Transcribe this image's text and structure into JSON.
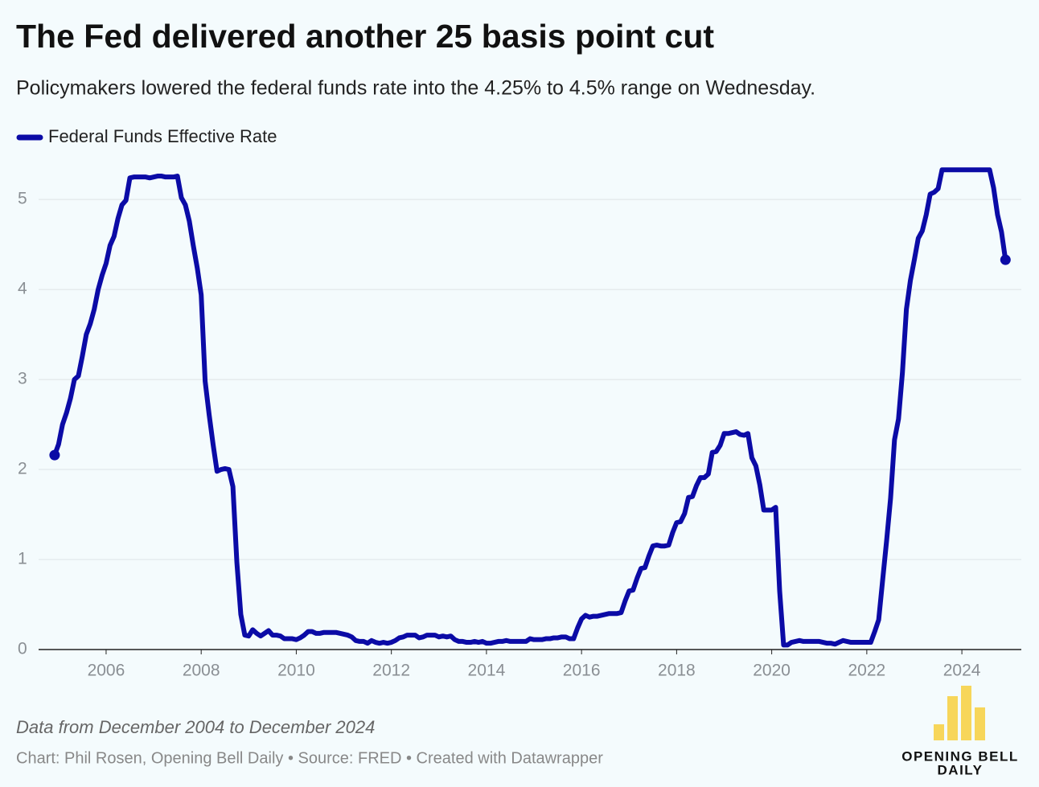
{
  "chart_data": {
    "type": "line",
    "title": "The Fed delivered another 25 basis point cut",
    "subtitle": "Policymakers lowered the federal funds rate into the 4.25% to 4.5% range on Wednesday.",
    "note": "Data from December 2004 to December 2024",
    "source": "Chart: Phil Rosen, Opening Bell Daily • Source: FRED • Created with Datawrapper",
    "logo": [
      "OPENING BELL",
      "DAILY"
    ],
    "xlim": [
      2004.58,
      2025.25
    ],
    "xticks": [
      2006,
      2008,
      2010,
      2012,
      2014,
      2016,
      2018,
      2020,
      2022,
      2024
    ],
    "ylim": [
      0,
      5.43
    ],
    "yticks": [
      0,
      1,
      2,
      3,
      4,
      5
    ],
    "grid": true,
    "x": [
      2004.917,
      2005,
      2005.083,
      2005.167,
      2005.25,
      2005.333,
      2005.417,
      2005.5,
      2005.583,
      2005.667,
      2005.75,
      2005.833,
      2005.917,
      2006,
      2006.083,
      2006.167,
      2006.25,
      2006.333,
      2006.417,
      2006.5,
      2006.583,
      2006.667,
      2006.75,
      2006.833,
      2006.917,
      2007,
      2007.083,
      2007.167,
      2007.25,
      2007.333,
      2007.417,
      2007.5,
      2007.583,
      2007.667,
      2007.75,
      2007.833,
      2007.917,
      2008,
      2008.083,
      2008.167,
      2008.25,
      2008.333,
      2008.417,
      2008.5,
      2008.583,
      2008.667,
      2008.75,
      2008.833,
      2008.917,
      2009,
      2009.083,
      2009.167,
      2009.25,
      2009.333,
      2009.417,
      2009.5,
      2009.583,
      2009.667,
      2009.75,
      2009.833,
      2009.917,
      2010,
      2010.083,
      2010.167,
      2010.25,
      2010.333,
      2010.417,
      2010.5,
      2010.583,
      2010.667,
      2010.75,
      2010.833,
      2010.917,
      2011,
      2011.083,
      2011.167,
      2011.25,
      2011.333,
      2011.417,
      2011.5,
      2011.583,
      2011.667,
      2011.75,
      2011.833,
      2011.917,
      2012,
      2012.083,
      2012.167,
      2012.25,
      2012.333,
      2012.417,
      2012.5,
      2012.583,
      2012.667,
      2012.75,
      2012.833,
      2012.917,
      2013,
      2013.083,
      2013.167,
      2013.25,
      2013.333,
      2013.417,
      2013.5,
      2013.583,
      2013.667,
      2013.75,
      2013.833,
      2013.917,
      2014,
      2014.083,
      2014.167,
      2014.25,
      2014.333,
      2014.417,
      2014.5,
      2014.583,
      2014.667,
      2014.75,
      2014.833,
      2014.917,
      2015,
      2015.083,
      2015.167,
      2015.25,
      2015.333,
      2015.417,
      2015.5,
      2015.583,
      2015.667,
      2015.75,
      2015.833,
      2015.917,
      2016,
      2016.083,
      2016.167,
      2016.25,
      2016.333,
      2016.417,
      2016.5,
      2016.583,
      2016.667,
      2016.75,
      2016.833,
      2016.917,
      2017,
      2017.083,
      2017.167,
      2017.25,
      2017.333,
      2017.417,
      2017.5,
      2017.583,
      2017.667,
      2017.75,
      2017.833,
      2017.917,
      2018,
      2018.083,
      2018.167,
      2018.25,
      2018.333,
      2018.417,
      2018.5,
      2018.583,
      2018.667,
      2018.75,
      2018.833,
      2018.917,
      2019,
      2019.083,
      2019.167,
      2019.25,
      2019.333,
      2019.417,
      2019.5,
      2019.583,
      2019.667,
      2019.75,
      2019.833,
      2019.917,
      2020,
      2020.083,
      2020.167,
      2020.25,
      2020.333,
      2020.417,
      2020.5,
      2020.583,
      2020.667,
      2020.75,
      2020.833,
      2020.917,
      2021,
      2021.083,
      2021.167,
      2021.25,
      2021.333,
      2021.417,
      2021.5,
      2021.583,
      2021.667,
      2021.75,
      2021.833,
      2021.917,
      2022,
      2022.083,
      2022.167,
      2022.25,
      2022.333,
      2022.417,
      2022.5,
      2022.583,
      2022.667,
      2022.75,
      2022.833,
      2022.917,
      2023,
      2023.083,
      2023.167,
      2023.25,
      2023.333,
      2023.417,
      2023.5,
      2023.583,
      2023.667,
      2023.75,
      2023.833,
      2023.917,
      2024,
      2024.083,
      2024.167,
      2024.25,
      2024.333,
      2024.417,
      2024.5,
      2024.583,
      2024.667,
      2024.75,
      2024.833,
      2024.917
    ],
    "series": [
      {
        "name": "Federal Funds Effective Rate",
        "color": "#0b0ba6",
        "values": [
          2.16,
          2.28,
          2.5,
          2.63,
          2.79,
          3,
          3.04,
          3.26,
          3.5,
          3.62,
          3.78,
          4,
          4.16,
          4.29,
          4.49,
          4.59,
          4.79,
          4.94,
          4.99,
          5.24,
          5.25,
          5.25,
          5.25,
          5.25,
          5.24,
          5.25,
          5.26,
          5.26,
          5.25,
          5.25,
          5.25,
          5.26,
          5.02,
          4.94,
          4.76,
          4.49,
          4.24,
          3.94,
          2.98,
          2.61,
          2.28,
          1.98,
          2,
          2.01,
          2,
          1.81,
          0.97,
          0.39,
          0.16,
          0.15,
          0.22,
          0.18,
          0.15,
          0.18,
          0.21,
          0.16,
          0.16,
          0.15,
          0.12,
          0.12,
          0.12,
          0.11,
          0.13,
          0.16,
          0.2,
          0.2,
          0.18,
          0.18,
          0.19,
          0.19,
          0.19,
          0.19,
          0.18,
          0.17,
          0.16,
          0.14,
          0.1,
          0.09,
          0.09,
          0.07,
          0.1,
          0.08,
          0.07,
          0.08,
          0.07,
          0.08,
          0.1,
          0.13,
          0.14,
          0.16,
          0.16,
          0.16,
          0.13,
          0.14,
          0.16,
          0.16,
          0.16,
          0.14,
          0.15,
          0.14,
          0.15,
          0.11,
          0.09,
          0.09,
          0.08,
          0.08,
          0.09,
          0.08,
          0.09,
          0.07,
          0.07,
          0.08,
          0.09,
          0.09,
          0.1,
          0.09,
          0.09,
          0.09,
          0.09,
          0.09,
          0.12,
          0.11,
          0.11,
          0.11,
          0.12,
          0.12,
          0.13,
          0.13,
          0.14,
          0.14,
          0.12,
          0.12,
          0.24,
          0.34,
          0.38,
          0.36,
          0.37,
          0.37,
          0.38,
          0.39,
          0.4,
          0.4,
          0.4,
          0.41,
          0.54,
          0.65,
          0.66,
          0.79,
          0.9,
          0.91,
          1.04,
          1.15,
          1.16,
          1.15,
          1.15,
          1.16,
          1.3,
          1.41,
          1.42,
          1.51,
          1.69,
          1.7,
          1.82,
          1.91,
          1.91,
          1.95,
          2.19,
          2.2,
          2.27,
          2.4,
          2.4,
          2.41,
          2.42,
          2.39,
          2.38,
          2.4,
          2.13,
          2.04,
          1.83,
          1.55,
          1.55,
          1.55,
          1.58,
          0.65,
          0.05,
          0.05,
          0.08,
          0.09,
          0.1,
          0.09,
          0.09,
          0.09,
          0.09,
          0.09,
          0.08,
          0.07,
          0.07,
          0.06,
          0.08,
          0.1,
          0.09,
          0.08,
          0.08,
          0.08,
          0.08,
          0.08,
          0.08,
          0.2,
          0.33,
          0.77,
          1.21,
          1.68,
          2.33,
          2.56,
          3.08,
          3.78,
          4.1,
          4.33,
          4.57,
          4.65,
          4.83,
          5.06,
          5.08,
          5.12,
          5.33,
          5.33,
          5.33,
          5.33,
          5.33,
          5.33,
          5.33,
          5.33,
          5.33,
          5.33,
          5.33,
          5.33,
          5.33,
          5.13,
          4.83,
          4.64,
          4.33
        ]
      }
    ]
  }
}
